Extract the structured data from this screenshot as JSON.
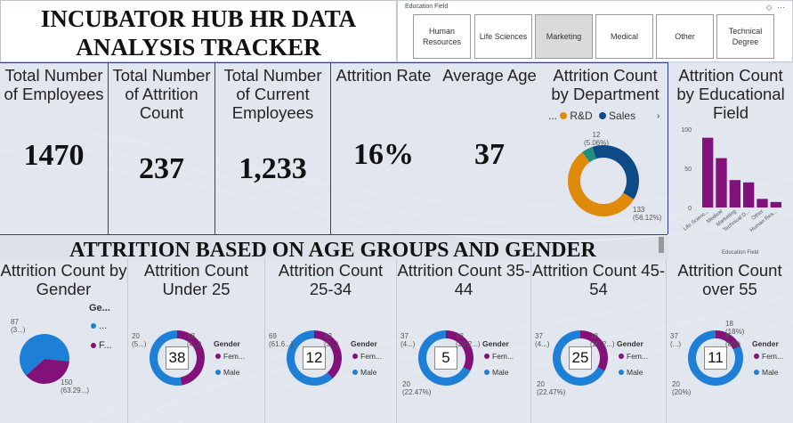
{
  "title": "INCUBATOR HUB HR DATA ANALYSIS TRACKER",
  "slicer": {
    "title": "Education Field",
    "options": [
      "Human Resources",
      "Life Sciences",
      "Marketing",
      "Medical",
      "Other",
      "Technical Degree"
    ],
    "selected": "Marketing",
    "icon_names": [
      "clear-filter-icon",
      "more-options-icon"
    ]
  },
  "kpis": {
    "total_employees": {
      "label": "Total Number of Employees",
      "value": "1470"
    },
    "total_attrition": {
      "label": "Total Number of Attrition Count",
      "value": "237"
    },
    "current_employees": {
      "label": "Total Number of Current Employees",
      "value": "1,233"
    },
    "attrition_rate": {
      "label": "Attrition Rate",
      "value": "16%"
    },
    "average_age": {
      "label": "Average Age",
      "value": "37"
    }
  },
  "department": {
    "label": "Attrition Count by Department",
    "legend_prefix": "...",
    "legend": [
      "R&D",
      "Sales"
    ],
    "slices": [
      {
        "name": "Sales",
        "value": 92,
        "color": "#0e4a85"
      },
      {
        "name": "R&D",
        "value": 133,
        "color": "#e08a0c"
      },
      {
        "name": "HR",
        "value": 12,
        "color": "#1e8f7a"
      }
    ],
    "label_small": "12",
    "label_small_pct": "(5.06%)",
    "label_main": "133",
    "label_main_pct": "(56.12%)"
  },
  "education": {
    "label": "Attrition Count by Educational Field",
    "axis_title": "Education Field",
    "y_ticks": [
      "100",
      "50",
      "0"
    ],
    "bar_color": "#82127a",
    "chart_data": {
      "type": "bar",
      "categories": [
        "Life Scienc...",
        "Medical",
        "Marketing",
        "Technical D...",
        "Other",
        "Human Res..."
      ],
      "values": [
        89,
        63,
        35,
        32,
        11,
        7
      ],
      "xlabel": "Education Field",
      "ylabel": "",
      "ylim": [
        0,
        100
      ]
    }
  },
  "section_title": "ATTRITION BASED ON AGE GROUPS AND GENDER",
  "gender": {
    "label": "Attrition Count by Gender",
    "legend_title": "Ge...",
    "legend": [
      "...",
      "F..."
    ],
    "male_color": "#1d7fd6",
    "female_color": "#82127a",
    "slices": [
      {
        "name": "Male",
        "value": 150
      },
      {
        "name": "Female",
        "value": 87
      }
    ],
    "label_f": "87",
    "label_f_pct": "(3...)",
    "label_m": "150",
    "label_m_pct": "(63.29...)"
  },
  "age_groups": [
    {
      "label": "Attrition Count Under 25",
      "center": "38",
      "female": 18,
      "male": 20,
      "f_label": "18",
      "f_pct": "(4...)",
      "m_label": "20",
      "m_pct": "(5...)"
    },
    {
      "label": "Attrition Count 25-34",
      "center": "12",
      "female": 43,
      "male": 69,
      "f_label": "43",
      "f_pct": "(3...)",
      "m_label": "69",
      "m_pct": "(61.6...)"
    },
    {
      "label": "Attrition Count 35-44",
      "center": "5",
      "female": 18,
      "male": 37,
      "f_label": "18",
      "f_pct": "(20.2...)",
      "m_label": "37",
      "m_pct": "(4...)",
      "extra_label": "20",
      "extra_pct": "(22.47%)"
    },
    {
      "label": "Attrition Count 45-54",
      "center": "25",
      "female": 18,
      "male": 37,
      "f_label": "18",
      "f_pct": "(20.2...)",
      "m_label": "37",
      "m_pct": "(4...)",
      "extra_label": "20",
      "extra_pct": "(22.47%)"
    },
    {
      "label": "Attrition Count over 55",
      "center": "11",
      "female": 8,
      "male": 37,
      "f_label": "8",
      "f_pct": "(8%)",
      "m_label": "37",
      "m_pct": "(...)",
      "extra_label": "20",
      "extra_pct": "(20%)",
      "f2_label": "18",
      "f2_pct": "(18%)"
    }
  ],
  "age_legend": {
    "title": "Gender",
    "female": "Fem...",
    "male": "Male"
  }
}
